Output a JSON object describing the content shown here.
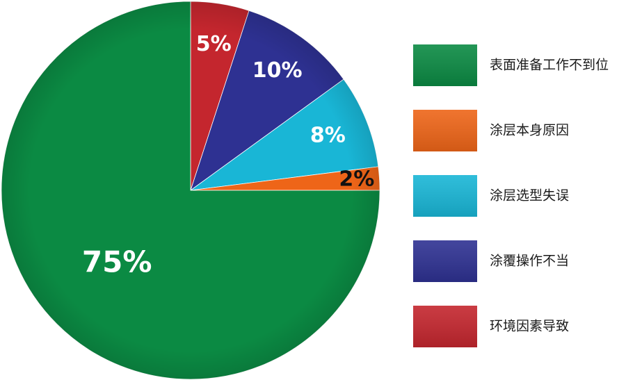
{
  "chart_data": {
    "type": "pie",
    "title": "",
    "legend_position": "right",
    "start_angle_deg": 0,
    "direction": "clockwise",
    "slices": [
      {
        "label": "环境因素导致",
        "value": 5,
        "value_label": "5%",
        "color": "#c4262e",
        "label_color": "#ffffff"
      },
      {
        "label": "涂覆操作不当",
        "value": 10,
        "value_label": "10%",
        "color": "#2e3192",
        "label_color": "#ffffff"
      },
      {
        "label": "涂层选型失误",
        "value": 8,
        "value_label": "8%",
        "color": "#19b6d6",
        "label_color": "#ffffff"
      },
      {
        "label": "涂层本身原因",
        "value": 2,
        "value_label": "2%",
        "color": "#ee6518",
        "label_color": "#111111"
      },
      {
        "label": "表面准备工作不到位",
        "value": 75,
        "value_label": "75%",
        "color": "#0b8a43",
        "label_color": "#ffffff"
      }
    ],
    "legend_order": [
      "表面准备工作不到位",
      "涂层本身原因",
      "涂层选型失误",
      "涂覆操作不当",
      "环境因素导致"
    ]
  }
}
